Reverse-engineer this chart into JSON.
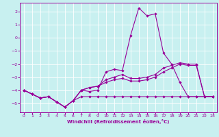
{
  "bg_color": "#c8f0f0",
  "grid_color": "#b0dede",
  "line_color": "#990099",
  "xlabel": "Windchill (Refroidissement éolien,°C)",
  "xlim_min": -0.5,
  "xlim_max": 23.5,
  "ylim_min": -5.7,
  "ylim_max": 2.7,
  "xticks": [
    0,
    1,
    2,
    3,
    4,
    5,
    6,
    7,
    8,
    9,
    10,
    11,
    12,
    13,
    14,
    15,
    16,
    17,
    18,
    19,
    20,
    21,
    22,
    23
  ],
  "yticks": [
    -5,
    -4,
    -3,
    -2,
    -1,
    0,
    1,
    2
  ],
  "line_flat_x": [
    0,
    1,
    2,
    3,
    4,
    5,
    6,
    7,
    8,
    9,
    10,
    11,
    12,
    13,
    14,
    15,
    16,
    17,
    18,
    19,
    20,
    21,
    22,
    23
  ],
  "line_flat_y": [
    -4.0,
    -4.3,
    -4.6,
    -4.5,
    -4.9,
    -5.3,
    -4.8,
    -4.5,
    -4.5,
    -4.5,
    -4.5,
    -4.5,
    -4.5,
    -4.5,
    -4.5,
    -4.5,
    -4.5,
    -4.5,
    -4.5,
    -4.5,
    -4.5,
    -4.5,
    -4.5,
    -4.5
  ],
  "line_rise1_x": [
    0,
    1,
    2,
    3,
    4,
    5,
    6,
    7,
    8,
    9,
    10,
    11,
    12,
    13,
    14,
    15,
    16,
    17,
    18,
    19,
    20,
    21,
    22,
    23
  ],
  "line_rise1_y": [
    -4.0,
    -4.3,
    -4.6,
    -4.5,
    -4.9,
    -5.3,
    -4.8,
    -4.0,
    -3.8,
    -3.7,
    -3.4,
    -3.2,
    -3.1,
    -3.3,
    -3.3,
    -3.2,
    -3.0,
    -2.6,
    -2.3,
    -2.0,
    -2.1,
    -2.1,
    -4.5,
    -4.5
  ],
  "line_rise2_x": [
    0,
    1,
    2,
    3,
    4,
    5,
    6,
    7,
    8,
    9,
    10,
    11,
    12,
    13,
    14,
    15,
    16,
    17,
    18,
    19,
    20,
    21,
    22,
    23
  ],
  "line_rise2_y": [
    -4.0,
    -4.3,
    -4.6,
    -4.5,
    -4.9,
    -5.3,
    -4.8,
    -4.0,
    -3.8,
    -3.7,
    -3.2,
    -3.0,
    -2.8,
    -3.1,
    -3.1,
    -3.0,
    -2.8,
    -2.3,
    -2.1,
    -1.9,
    -2.0,
    -2.0,
    -4.5,
    -4.5
  ],
  "line_main_x": [
    0,
    1,
    2,
    3,
    4,
    5,
    6,
    7,
    8,
    9,
    10,
    11,
    12,
    13,
    14,
    15,
    16,
    17,
    18,
    19,
    20,
    21,
    22,
    23
  ],
  "line_main_y": [
    -4.0,
    -4.3,
    -4.6,
    -4.5,
    -4.9,
    -5.3,
    -4.8,
    -4.0,
    -4.1,
    -4.0,
    -2.6,
    -2.4,
    -2.5,
    0.2,
    2.3,
    1.7,
    1.85,
    -1.15,
    -2.0,
    -3.4,
    -4.5,
    -4.5,
    -4.5,
    -4.5
  ]
}
